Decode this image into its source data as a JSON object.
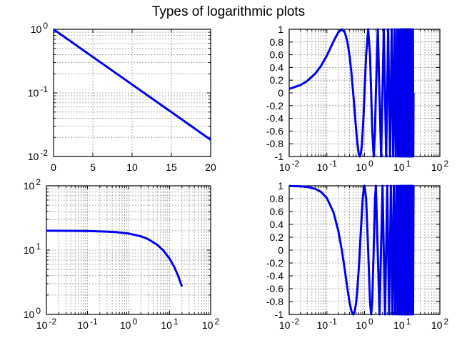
{
  "title": "Types of logarithmic plots",
  "chart_data": [
    {
      "type": "line",
      "position": "top-left",
      "xscale": "linear",
      "yscale": "log",
      "xlim": [
        0,
        20
      ],
      "ylim": [
        0.01,
        1
      ],
      "grid": true,
      "xticks": [
        0,
        5,
        10,
        15,
        20
      ],
      "xtick_labels": [
        "0",
        "5",
        "10",
        "15",
        "20"
      ],
      "yticks": [
        0.01,
        0.1,
        1
      ],
      "ytick_labels": [
        "10^-2",
        "10^-1",
        "10^0"
      ],
      "color": "#0000ee",
      "x": [
        0,
        5,
        10,
        15,
        20
      ],
      "y": [
        1,
        0.3679,
        0.1353,
        0.0498,
        0.0183
      ]
    },
    {
      "type": "line",
      "position": "top-right",
      "xscale": "log",
      "yscale": "linear",
      "xlim": [
        0.01,
        100
      ],
      "ylim": [
        -1,
        1
      ],
      "grid": true,
      "xticks": [
        0.01,
        0.1,
        1,
        10,
        100
      ],
      "xtick_labels": [
        "10^-2",
        "10^-1",
        "10^0",
        "10^1",
        "10^2"
      ],
      "yticks": [
        -1,
        -0.8,
        -0.6,
        -0.4,
        -0.2,
        0,
        0.2,
        0.4,
        0.6,
        0.8,
        1
      ],
      "ytick_labels": [
        "-1",
        "-0.8",
        "-0.6",
        "-0.4",
        "-0.2",
        "0",
        "0.2",
        "0.4",
        "0.6",
        "0.8",
        "1"
      ],
      "color": "#0000ee",
      "x": [
        0.01,
        0.02,
        0.03,
        0.05,
        0.07,
        0.1,
        0.15,
        0.2,
        0.25,
        0.3,
        0.35,
        0.4,
        0.45,
        0.5,
        0.55,
        0.6,
        0.65,
        0.7,
        0.75,
        0.8,
        0.85,
        0.9,
        0.95,
        1,
        1.1,
        1.25,
        1.4,
        1.5,
        1.6,
        1.75,
        1.9,
        2,
        2.25,
        2.75,
        3.25,
        3.75,
        4.25,
        4.75,
        5.25,
        5.75,
        6.25,
        6.75,
        7.25,
        7.75,
        8.25,
        8.75,
        9.25,
        9.75,
        10.25,
        10.75,
        11.25,
        11.75,
        12.25,
        12.75,
        13.25,
        13.75,
        14.25,
        14.75,
        15.25,
        15.75,
        16.25,
        16.75,
        17.25,
        17.75,
        18.25,
        18.75,
        19.25,
        19.75,
        20
      ],
      "y": [
        0.063,
        0.125,
        0.187,
        0.309,
        0.426,
        0.588,
        0.809,
        0.951,
        1,
        0.951,
        0.809,
        0.588,
        0.309,
        0,
        -0.309,
        -0.588,
        -0.809,
        -0.951,
        -1,
        -0.951,
        -0.809,
        -0.588,
        -0.309,
        0,
        0.588,
        1,
        0.588,
        0,
        -0.588,
        -1,
        -0.588,
        0,
        1,
        -1,
        1,
        -1,
        1,
        -1,
        1,
        -1,
        1,
        -1,
        1,
        -1,
        1,
        -1,
        1,
        -1,
        1,
        -1,
        1,
        -1,
        1,
        -1,
        1,
        -1,
        1,
        -1,
        1,
        -1,
        1,
        -1,
        1,
        -1,
        1,
        -1,
        1,
        -1,
        0
      ]
    },
    {
      "type": "line",
      "position": "bottom-left",
      "xscale": "log",
      "yscale": "log",
      "xlim": [
        0.01,
        100
      ],
      "ylim": [
        1,
        100
      ],
      "grid": true,
      "xticks": [
        0.01,
        0.1,
        1,
        10,
        100
      ],
      "xtick_labels": [
        "10^-2",
        "10^-1",
        "10^0",
        "10^1",
        "10^2"
      ],
      "yticks": [
        1,
        10,
        100
      ],
      "ytick_labels": [
        "10^0",
        "10^1",
        "10^2"
      ],
      "color": "#0000ee",
      "x": [
        0.01,
        0.03,
        0.1,
        0.3,
        0.5,
        1,
        2,
        3,
        5,
        7,
        10,
        13,
        16,
        20
      ],
      "y": [
        19.98,
        19.94,
        19.8,
        19.41,
        19.02,
        18.1,
        16.37,
        14.82,
        12.13,
        9.93,
        7.36,
        5.45,
        4.04,
        2.71
      ]
    },
    {
      "type": "line",
      "position": "bottom-right",
      "xscale": "log",
      "yscale": "linear",
      "xlim": [
        0.01,
        100
      ],
      "ylim": [
        -1,
        1
      ],
      "grid": true,
      "xticks": [
        0.01,
        0.1,
        1,
        10,
        100
      ],
      "xtick_labels": [
        "10^-2",
        "10^-1",
        "10^0",
        "10^1",
        "10^2"
      ],
      "yticks": [
        -1,
        -0.8,
        -0.6,
        -0.4,
        -0.2,
        0,
        0.2,
        0.4,
        0.6,
        0.8,
        1
      ],
      "ytick_labels": [
        "-1",
        "-0.8",
        "-0.6",
        "-0.4",
        "-0.2",
        "0",
        "0.2",
        "0.4",
        "0.6",
        "0.8",
        "1"
      ],
      "color": "#0000ee",
      "x": [
        0.01,
        0.02,
        0.03,
        0.05,
        0.07,
        0.1,
        0.15,
        0.2,
        0.25,
        0.3,
        0.35,
        0.4,
        0.45,
        0.5,
        0.55,
        0.6,
        0.65,
        0.7,
        0.75,
        0.8,
        0.85,
        0.9,
        0.95,
        1,
        1.1,
        1.25,
        1.4,
        1.5,
        1.6,
        1.75,
        1.9,
        2,
        2.5,
        3,
        3.5,
        4,
        4.5,
        5,
        5.5,
        6,
        6.5,
        7,
        7.5,
        8,
        8.5,
        9,
        9.5,
        10,
        10.5,
        11,
        11.5,
        12,
        12.5,
        13,
        13.5,
        14,
        14.5,
        15,
        15.5,
        16,
        16.5,
        17,
        17.5,
        18,
        18.5,
        19,
        19.5,
        20
      ],
      "y": [
        0.998,
        0.992,
        0.982,
        0.951,
        0.905,
        0.809,
        0.588,
        0.309,
        0,
        -0.309,
        -0.588,
        -0.809,
        -0.951,
        -1,
        -0.951,
        -0.809,
        -0.588,
        -0.309,
        0,
        0.309,
        0.588,
        0.809,
        0.951,
        1,
        0.809,
        0,
        -0.809,
        -1,
        -0.809,
        0,
        0.809,
        1,
        -1,
        1,
        -1,
        1,
        -1,
        1,
        -1,
        1,
        -1,
        1,
        -1,
        1,
        -1,
        1,
        -1,
        1,
        -1,
        1,
        -1,
        1,
        -1,
        1,
        -1,
        1,
        -1,
        1,
        -1,
        1,
        -1,
        1,
        -1,
        1,
        -1,
        1,
        -1,
        1
      ]
    }
  ]
}
